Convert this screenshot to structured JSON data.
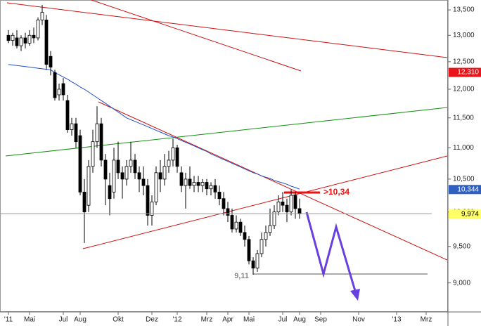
{
  "chart_data": {
    "type": "candlestick",
    "log": true,
    "ylim": [
      8620,
      13700
    ],
    "yticks": [
      {
        "value": 9000,
        "label": "9,000"
      },
      {
        "value": 9500,
        "label": "9,500"
      },
      {
        "value": 10000,
        "label": "10,000"
      },
      {
        "value": 10500,
        "label": "10,500"
      },
      {
        "value": 11000,
        "label": "11,000"
      },
      {
        "value": 11500,
        "label": "11,500"
      },
      {
        "value": 12000,
        "label": "12,000"
      },
      {
        "value": 12500,
        "label": "12,500"
      },
      {
        "value": 13000,
        "label": "13,000"
      },
      {
        "value": 13500,
        "label": "13,500"
      }
    ],
    "categories": [
      "'11",
      null,
      null,
      null,
      null,
      "Mai",
      null,
      null,
      null,
      null,
      null,
      null,
      null,
      "Jul",
      null,
      null,
      null,
      "Aug",
      null,
      null,
      null,
      null,
      null,
      null,
      null,
      null,
      "Okt",
      null,
      null,
      null,
      null,
      null,
      null,
      null,
      "Dez",
      null,
      null,
      null,
      null,
      null,
      "'12",
      null,
      null,
      null,
      null,
      null,
      null,
      "Mrz",
      null,
      null,
      null,
      null,
      "Apr",
      null,
      null,
      null,
      null,
      "Mai",
      null,
      null,
      null,
      null,
      null,
      null,
      null,
      "Jul",
      null,
      null,
      null,
      "Aug",
      null,
      null,
      null,
      null,
      "Sep",
      null,
      null,
      null,
      null,
      null,
      null,
      null,
      null,
      "Nov",
      null,
      null,
      null,
      null,
      null,
      null,
      null,
      null,
      "'13",
      null,
      null,
      null,
      null,
      null,
      null,
      "Mrz",
      null,
      null,
      null,
      null
    ],
    "open": [
      13000,
      12900,
      12950,
      12800,
      12950,
      12850,
      13000,
      12950,
      13300,
      13300,
      12600,
      12300,
      11900,
      12100,
      11800,
      11300,
      11400,
      11200,
      10300,
      10100,
      10700,
      11100,
      11400,
      10800,
      10400,
      10300,
      10800,
      10600,
      10500,
      10700,
      10800,
      10600,
      10500,
      10400,
      9950,
      10150,
      10600,
      10500,
      10700,
      10800,
      11000,
      10600,
      10400,
      10500,
      10400,
      10450,
      10400,
      10450,
      10350,
      10400,
      10300,
      10200,
      10050,
      9950,
      9750,
      9850,
      9700,
      9600,
      9300,
      9200,
      9400,
      9600,
      9700,
      9800,
      10000,
      10150,
      10100,
      10000,
      10250,
      10050,
      null,
      null,
      null,
      null,
      null,
      null,
      null,
      null,
      null,
      null,
      null,
      null,
      null,
      null,
      null,
      null,
      null,
      null,
      null,
      null,
      null,
      null,
      null,
      null,
      null,
      null,
      null,
      null,
      null,
      null,
      null,
      null,
      null,
      null
    ],
    "high": [
      13100,
      13050,
      13100,
      13000,
      13050,
      13100,
      13150,
      13350,
      13600,
      13400,
      12700,
      12350,
      12100,
      12200,
      11900,
      11500,
      11500,
      11300,
      10500,
      10800,
      11300,
      11700,
      11500,
      10900,
      10600,
      11000,
      11100,
      10700,
      10800,
      11100,
      10900,
      10700,
      10700,
      10500,
      10250,
      10700,
      10800,
      10900,
      10950,
      11150,
      11050,
      10700,
      10600,
      10700,
      10550,
      10550,
      10500,
      10500,
      10450,
      10500,
      10400,
      10300,
      10150,
      10050,
      9950,
      9900,
      9800,
      9650,
      9350,
      9450,
      9700,
      9800,
      10050,
      10100,
      10250,
      10300,
      10200,
      10340,
      10300,
      10200,
      null,
      null,
      null,
      null,
      null,
      null,
      null,
      null,
      null,
      null,
      null,
      null,
      null,
      null,
      null,
      null,
      null,
      null,
      null,
      null,
      null,
      null,
      null,
      null,
      null,
      null,
      null,
      null,
      null,
      null,
      null,
      null,
      null,
      null
    ],
    "low": [
      12850,
      12800,
      12750,
      12700,
      12750,
      12800,
      12850,
      12900,
      13200,
      12350,
      12250,
      11800,
      11800,
      11800,
      11250,
      11200,
      11000,
      10250,
      9550,
      10000,
      10600,
      11000,
      10700,
      10100,
      9950,
      10200,
      10500,
      10200,
      10400,
      10600,
      10500,
      10300,
      10250,
      9800,
      9800,
      10100,
      10300,
      10400,
      10600,
      10700,
      10600,
      10300,
      10050,
      10350,
      10300,
      10300,
      10300,
      10250,
      10250,
      10200,
      10100,
      9950,
      9850,
      9700,
      9700,
      9650,
      9500,
      9250,
      9110,
      9150,
      9350,
      9500,
      9650,
      9750,
      9950,
      10000,
      9850,
      9950,
      9900,
      9900,
      null,
      null,
      null,
      null,
      null,
      null,
      null,
      null,
      null,
      null,
      null,
      null,
      null,
      null,
      null,
      null,
      null,
      null,
      null,
      null,
      null,
      null,
      null,
      null,
      null,
      null,
      null,
      null,
      null,
      null,
      null,
      null,
      null,
      null
    ],
    "close": [
      12900,
      13000,
      12800,
      12950,
      12850,
      13000,
      12950,
      13300,
      13450,
      12450,
      12400,
      11850,
      12000,
      11900,
      11300,
      11400,
      11100,
      10300,
      10000,
      10700,
      11100,
      11400,
      10800,
      10500,
      10200,
      10800,
      10600,
      10500,
      10700,
      10800,
      10600,
      10500,
      10400,
      9950,
      10150,
      10600,
      10500,
      10700,
      10800,
      11000,
      10700,
      10400,
      10500,
      10400,
      10450,
      10400,
      10450,
      10350,
      10400,
      10300,
      10200,
      10050,
      9950,
      9750,
      9850,
      9700,
      9600,
      9300,
      9200,
      9400,
      9600,
      9700,
      9800,
      10000,
      10150,
      10100,
      10000,
      10250,
      10050,
      9974,
      null,
      null,
      null,
      null,
      null,
      null,
      null,
      null,
      null,
      null,
      null,
      null,
      null,
      null,
      null,
      null,
      null,
      null,
      null,
      null,
      null,
      null,
      null,
      null,
      null,
      null,
      null,
      null,
      null,
      null,
      null,
      null,
      null,
      null
    ],
    "ma": {
      "color": "#2050c8",
      "values": [
        12450,
        12440,
        12430,
        12420,
        12410,
        12400,
        12390,
        12380,
        12370,
        12360,
        12350,
        12300,
        12260,
        12220,
        12180,
        12130,
        12090,
        12040,
        12000,
        11950,
        11900,
        11850,
        11800,
        11750,
        11700,
        11650,
        11600,
        11550,
        11500,
        11470,
        11440,
        11410,
        11380,
        11350,
        11320,
        11290,
        11260,
        11230,
        11200,
        11180,
        11150,
        11120,
        11090,
        11060,
        11030,
        11000,
        10970,
        10940,
        10900,
        10870,
        10840,
        10810,
        10780,
        10750,
        10720,
        10690,
        10660,
        10630,
        10600,
        10580,
        10550,
        10530,
        10510,
        10480,
        10460,
        10440,
        10420,
        10390,
        10370,
        10344,
        null,
        null,
        null,
        null,
        null,
        null,
        null,
        null,
        null,
        null,
        null,
        null,
        null,
        null,
        null,
        null,
        null,
        null,
        null,
        null,
        null,
        null,
        null,
        null,
        null,
        null,
        null,
        null,
        null,
        null,
        null,
        null,
        null,
        null
      ]
    },
    "price_labels": [
      {
        "value": 12310,
        "label": "12,310",
        "color": "#e8161b",
        "text_color": "#ffffff"
      },
      {
        "value": 10344,
        "label": "10,344",
        "color": "#2f5fc0",
        "text_color": "#ffffff"
      },
      {
        "value": 9974,
        "label": "9,974",
        "color": "#ffff66",
        "text_color": "#000000"
      }
    ],
    "annotations": [
      ">10,34",
      "9,11"
    ]
  }
}
